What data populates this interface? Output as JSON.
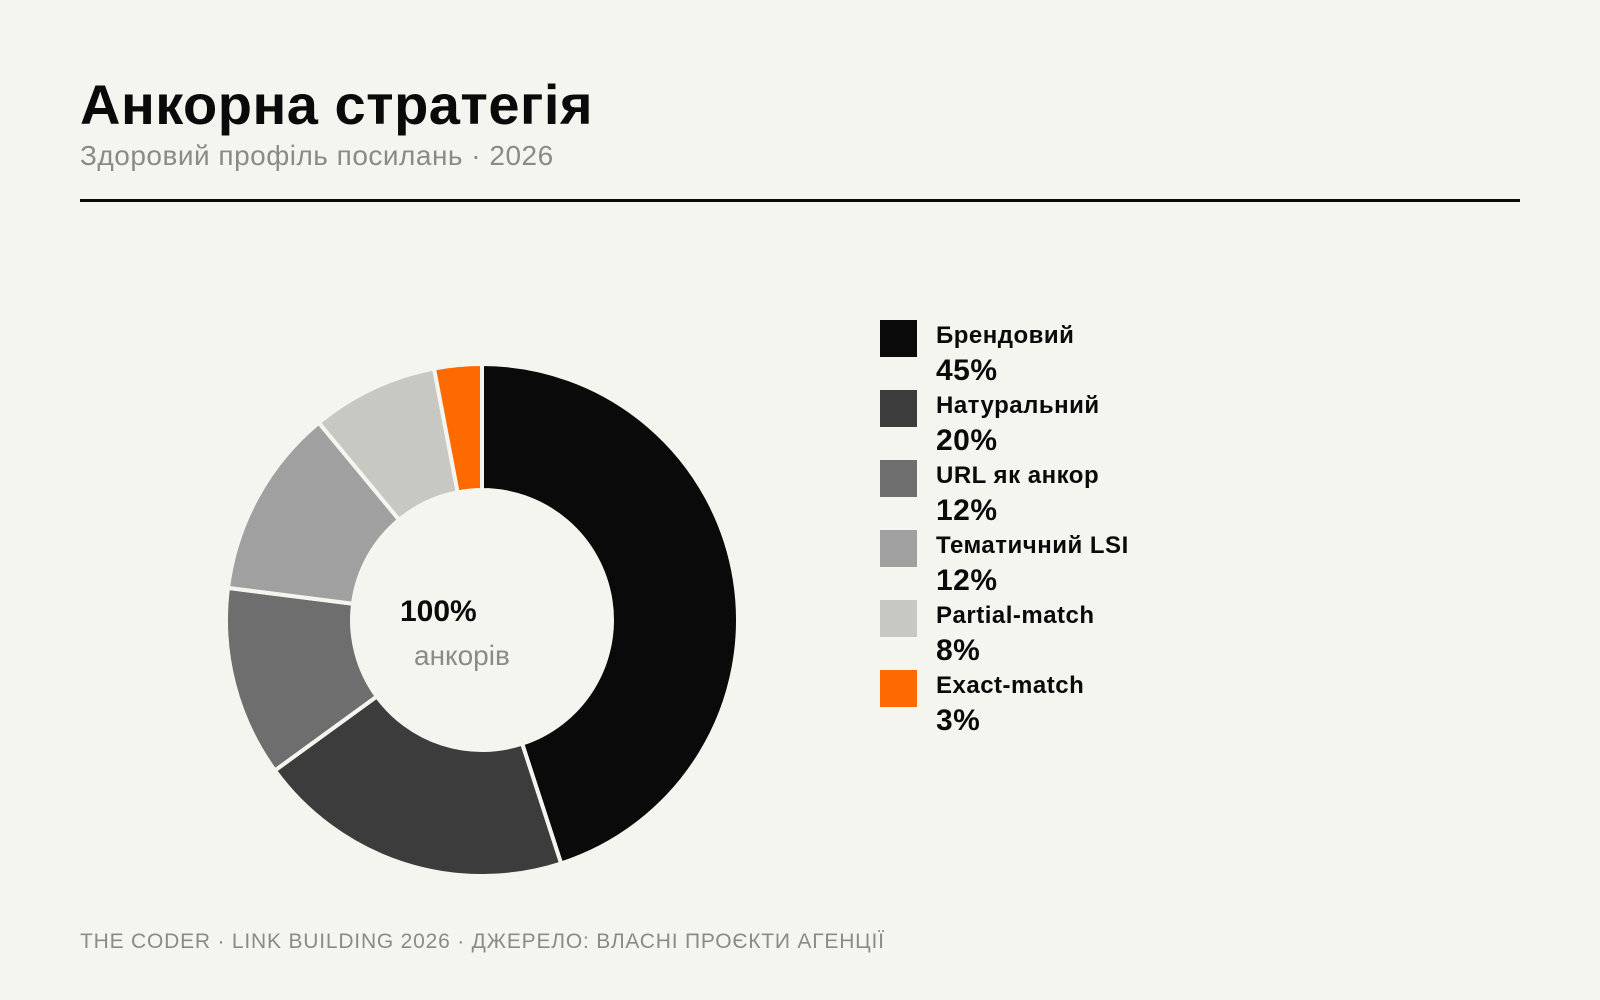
{
  "title": "Анкорна стратегія",
  "subtitle": "Здоровий профіль посилань · 2026",
  "center": {
    "value": "100%",
    "label": "анкорів"
  },
  "footer": "THE CODER · LINK BUILDING 2026 · ДЖЕРЕЛО: ВЛАСНІ ПРОЄКТИ АГЕНЦІЇ",
  "colors": {
    "background": "#f5f5f0",
    "accent": "#ff6a00",
    "separator": "#f5f5f0"
  },
  "legend": [
    {
      "name": "Брендовий",
      "value_label": "45%",
      "color": "#0a0a0a"
    },
    {
      "name": "Натуральний",
      "value_label": "20%",
      "color": "#3c3c3c"
    },
    {
      "name": "URL як анкор",
      "value_label": "12%",
      "color": "#6e6e6e"
    },
    {
      "name": "Тематичний LSI",
      "value_label": "12%",
      "color": "#a0a0a0"
    },
    {
      "name": "Partial-match",
      "value_label": "8%",
      "color": "#c8c8c2"
    },
    {
      "name": "Exact-match",
      "value_label": "3%",
      "color": "#ff6a00"
    }
  ],
  "chart_data": {
    "type": "pie",
    "variant": "donut",
    "title": "Анкорна стратегія",
    "subtitle": "Здоровий профіль посилань · 2026",
    "categories": [
      "Брендовий",
      "Натуральний",
      "URL як анкор",
      "Тематичний LSI",
      "Partial-match",
      "Exact-match"
    ],
    "values": [
      45,
      20,
      12,
      12,
      8,
      3
    ],
    "unit": "%",
    "colors": [
      "#0a0a0a",
      "#3c3c3c",
      "#6e6e6e",
      "#a0a0a0",
      "#c8c8c2",
      "#ff6a00"
    ],
    "start": "12 o'clock",
    "direction": "clockwise",
    "legend_position": "right"
  }
}
